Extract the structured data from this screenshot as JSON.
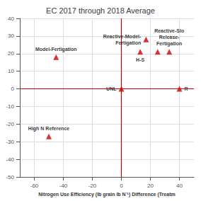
{
  "chart_data": {
    "type": "scatter",
    "title": "EC 2017 through 2018 Average",
    "xlabel": "Nitrogen Use Efficiency (lb grain lb N⁻¹) Difference (Treatm",
    "x": [
      -50,
      -45,
      0,
      13,
      17,
      25,
      40,
      33
    ],
    "values": [
      -27,
      18,
      0,
      21,
      28,
      21,
      0,
      21
    ],
    "xlim": [
      -70,
      50
    ],
    "ylim": [
      -50,
      40
    ],
    "xticks": [
      -60,
      -40,
      -20,
      0,
      20,
      40
    ],
    "yticks": [
      -50,
      -40,
      -30,
      -20,
      -10,
      0,
      10,
      20,
      30,
      40
    ],
    "grid": true,
    "color": "#cc0000",
    "marker": "triangle",
    "annotations": [
      {
        "text": "High N Reference",
        "x": -50,
        "y": -27
      },
      {
        "text": "Model-Fertigation",
        "x": -45,
        "y": 18
      },
      {
        "text": "UNL",
        "x": 0,
        "y": 0
      },
      {
        "text": "H-S",
        "x": 13,
        "y": 21
      },
      {
        "text": "Reactive-Model-\nFertigation",
        "x": 17,
        "y": 28
      },
      {
        "text": "Reactive-Slo\nRelease-\nFertigation",
        "x": 33,
        "y": 21
      },
      {
        "text": "R",
        "x": 40,
        "y": 0
      }
    ]
  }
}
